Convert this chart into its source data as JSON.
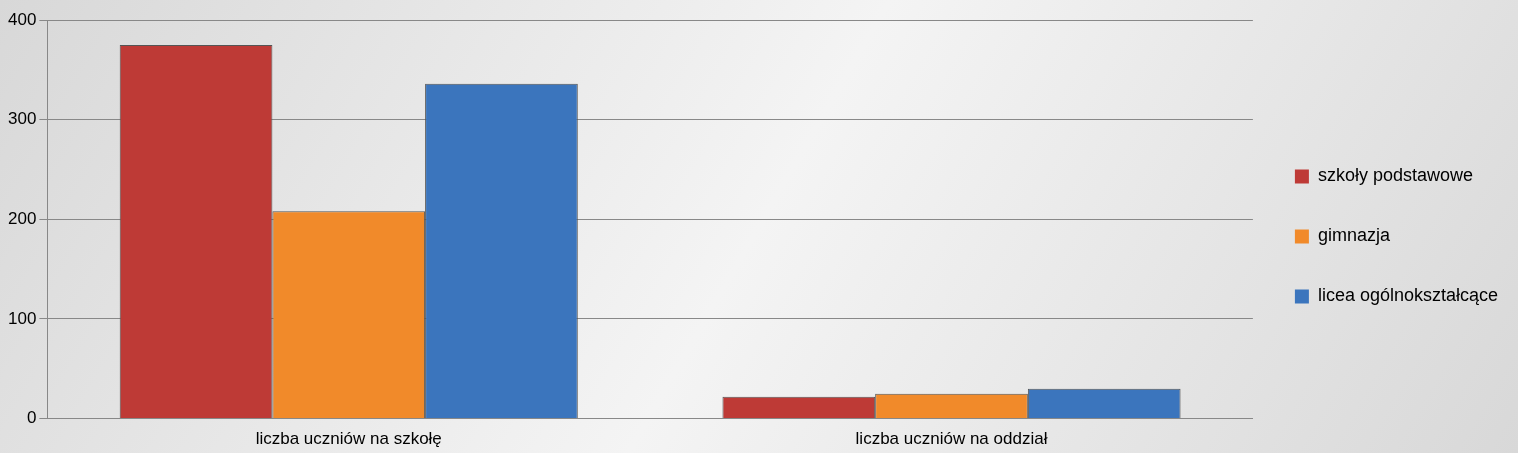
{
  "chart_data": {
    "type": "bar",
    "categories": [
      "liczba uczniów na szkołę",
      "liczba uczniów na oddział"
    ],
    "series": [
      {
        "name": "szkoły podstawowe",
        "color": "#be3a36",
        "values": [
          375,
          22
        ]
      },
      {
        "name": "gimnazja",
        "color": "#f18a2a",
        "values": [
          208,
          25
        ]
      },
      {
        "name": "licea ogólnokształcące",
        "color": "#3b75bd",
        "values": [
          336,
          30
        ]
      }
    ],
    "ylim": [
      0,
      400
    ],
    "yticks": [
      0,
      100,
      200,
      300,
      400
    ],
    "grid": "y",
    "legend": "right"
  }
}
